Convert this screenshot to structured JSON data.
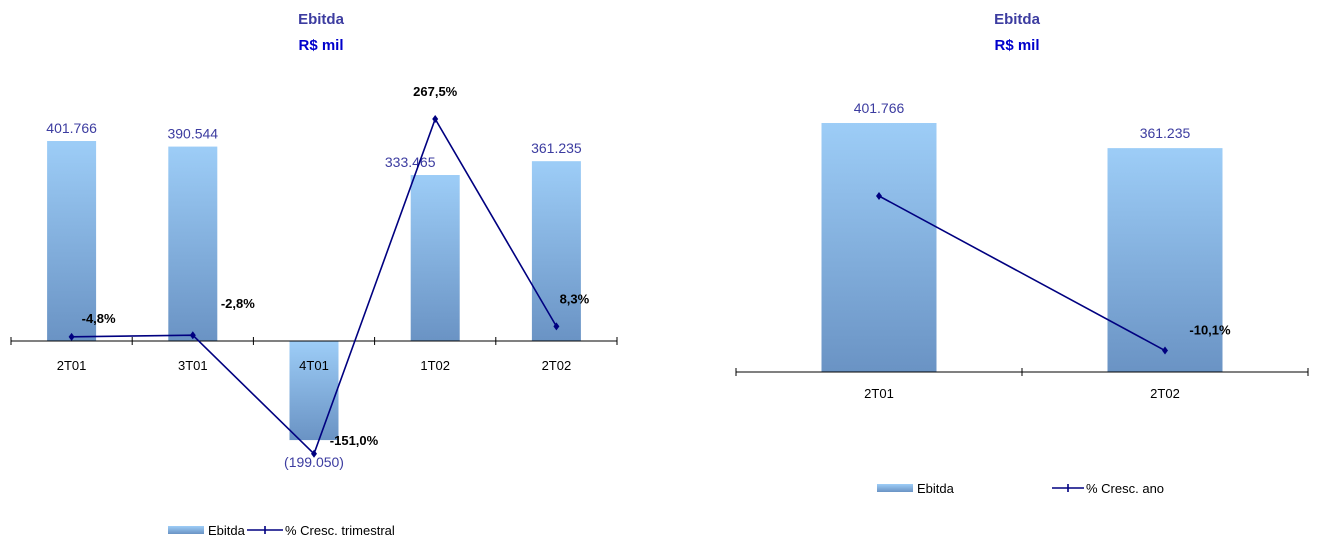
{
  "colors": {
    "title": "#3C3CA0",
    "subtitle": "#0000CC",
    "value_label": "#3C3CA0",
    "line": "#000080",
    "bar_top": "#9DCDF7",
    "bar_bottom": "#6A93C4"
  },
  "chart_data": [
    {
      "type": "bar",
      "title": "Ebitda",
      "subtitle": "R$ mil",
      "categories": [
        "2T01",
        "3T01",
        "4T01",
        "1T02",
        "2T02"
      ],
      "series": [
        {
          "name": "Ebitda",
          "type": "bar",
          "values": [
            401766,
            390544,
            -199050,
            333465,
            361235
          ],
          "labels": [
            "401.766",
            "390.544",
            "(199.050)",
            "333.465",
            "361.235"
          ]
        },
        {
          "name": "% Cresc. trimestral",
          "type": "line",
          "values": [
            -4.8,
            -2.8,
            -151.0,
            267.5,
            8.3
          ],
          "labels": [
            "-4,8%",
            "-2,8%",
            "-151,0%",
            "267,5%",
            "8,3%"
          ]
        }
      ],
      "legend": {
        "position": "bottom",
        "items": [
          "Ebitda",
          "% Cresc. trimestral"
        ]
      },
      "grid": false
    },
    {
      "type": "bar",
      "title": "Ebitda",
      "subtitle": "R$ mil",
      "categories": [
        "2T01",
        "2T02"
      ],
      "series": [
        {
          "name": "Ebitda",
          "type": "bar",
          "values": [
            401766,
            361235
          ],
          "labels": [
            "401.766",
            "361.235"
          ]
        },
        {
          "name": "% Cresc. ano",
          "type": "line",
          "values": [
            null,
            -10.1
          ],
          "labels": [
            "",
            "-10,1%"
          ]
        }
      ],
      "legend": {
        "position": "bottom",
        "items": [
          "Ebitda",
          "% Cresc. ano"
        ]
      },
      "grid": false
    }
  ]
}
